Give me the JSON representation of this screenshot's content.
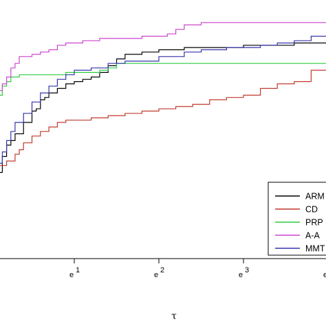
{
  "chart_data": {
    "type": "line",
    "title": "",
    "xlabel": "τ",
    "ylabel": "",
    "x_scale": "log",
    "x_ticks": [
      {
        "value": 1,
        "label": "e",
        "exp": "1"
      },
      {
        "value": 2,
        "label": "e",
        "exp": "2"
      },
      {
        "value": 3,
        "label": "e",
        "exp": "3"
      },
      {
        "value": 4,
        "label": "e",
        "exp": ""
      }
    ],
    "legend_position": "bottom-right",
    "grid": false,
    "series": [
      {
        "name": "ARM",
        "color": "#000000",
        "x": [
          0.0,
          0.05,
          0.1,
          0.15,
          0.2,
          0.25,
          0.3,
          0.4,
          0.5,
          0.55,
          0.6,
          0.65,
          0.7,
          0.8,
          0.9,
          1.0,
          1.1,
          1.2,
          1.3,
          1.4,
          1.5,
          1.6,
          1.8,
          2.0,
          2.3,
          2.6,
          3.0,
          3.3,
          3.6,
          4.0
        ],
        "y": [
          0.31,
          0.34,
          0.38,
          0.45,
          0.5,
          0.52,
          0.55,
          0.6,
          0.65,
          0.66,
          0.7,
          0.71,
          0.73,
          0.75,
          0.77,
          0.78,
          0.79,
          0.8,
          0.82,
          0.85,
          0.88,
          0.9,
          0.91,
          0.92,
          0.93,
          0.93,
          0.94,
          0.94,
          0.95,
          0.95
        ]
      },
      {
        "name": "CD",
        "color": "#c0392b",
        "x": [
          0.0,
          0.05,
          0.1,
          0.2,
          0.3,
          0.35,
          0.4,
          0.5,
          0.6,
          0.7,
          0.8,
          0.9,
          1.0,
          1.2,
          1.4,
          1.6,
          1.8,
          2.0,
          2.2,
          2.4,
          2.6,
          2.8,
          3.0,
          3.2,
          3.4,
          3.6,
          3.8,
          4.0
        ],
        "y": [
          0.37,
          0.38,
          0.41,
          0.43,
          0.46,
          0.48,
          0.51,
          0.54,
          0.56,
          0.58,
          0.6,
          0.61,
          0.61,
          0.62,
          0.63,
          0.64,
          0.65,
          0.66,
          0.67,
          0.68,
          0.7,
          0.71,
          0.72,
          0.75,
          0.77,
          0.78,
          0.83,
          0.85
        ]
      },
      {
        "name": "PRP",
        "color": "#2ecc40",
        "x": [
          0.0,
          0.03,
          0.06,
          0.1,
          0.15,
          0.2,
          0.25,
          0.3,
          0.35,
          0.4,
          0.5,
          0.6,
          0.7,
          0.8,
          0.9,
          1.0,
          1.1,
          1.2,
          1.3,
          1.4,
          1.5,
          1.6,
          2.0,
          3.0,
          4.0
        ],
        "y": [
          0.62,
          0.66,
          0.7,
          0.72,
          0.76,
          0.78,
          0.8,
          0.8,
          0.81,
          0.81,
          0.81,
          0.81,
          0.81,
          0.81,
          0.82,
          0.82,
          0.82,
          0.82,
          0.83,
          0.84,
          0.86,
          0.86,
          0.86,
          0.86,
          0.86
        ]
      },
      {
        "name": "A-A",
        "color": "#cc44cc",
        "x": [
          0.0,
          0.03,
          0.06,
          0.1,
          0.15,
          0.2,
          0.25,
          0.3,
          0.35,
          0.4,
          0.5,
          0.6,
          0.7,
          0.8,
          0.9,
          1.0,
          1.1,
          1.2,
          1.3,
          1.4,
          1.6,
          1.8,
          2.0,
          2.1,
          2.2,
          2.3,
          2.5,
          3.0,
          3.5,
          4.0
        ],
        "y": [
          0.57,
          0.63,
          0.7,
          0.74,
          0.77,
          0.8,
          0.84,
          0.86,
          0.89,
          0.89,
          0.9,
          0.91,
          0.92,
          0.94,
          0.95,
          0.95,
          0.96,
          0.96,
          0.97,
          0.97,
          0.97,
          0.98,
          0.98,
          0.99,
          1.01,
          1.03,
          1.04,
          1.04,
          1.04,
          1.04
        ]
      },
      {
        "name": "MMT",
        "color": "#3333aa",
        "x": [
          0.0,
          0.05,
          0.1,
          0.15,
          0.2,
          0.25,
          0.3,
          0.4,
          0.5,
          0.6,
          0.7,
          0.8,
          0.9,
          1.0,
          1.2,
          1.4,
          1.6,
          1.8,
          2.0,
          2.3,
          2.5,
          2.8,
          3.0,
          3.2,
          3.4,
          3.6,
          3.8,
          4.0
        ],
        "y": [
          0.37,
          0.38,
          0.42,
          0.47,
          0.52,
          0.56,
          0.6,
          0.64,
          0.69,
          0.73,
          0.76,
          0.79,
          0.81,
          0.83,
          0.84,
          0.86,
          0.87,
          0.87,
          0.89,
          0.91,
          0.92,
          0.93,
          0.93,
          0.94,
          0.95,
          0.96,
          0.98,
          0.99
        ]
      }
    ],
    "xlim": [
      0.0,
      4.0
    ],
    "ylim": [
      0.0,
      1.1
    ]
  }
}
